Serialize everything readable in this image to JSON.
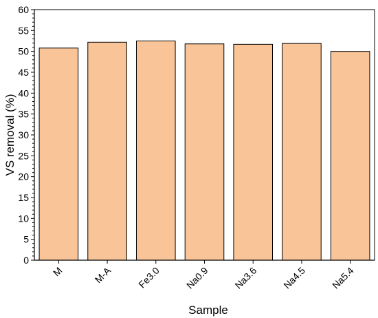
{
  "chart_data": {
    "type": "bar",
    "title": "",
    "xlabel": "Sample",
    "ylabel": "VS removal (%)",
    "categories": [
      "M",
      "M-A",
      "Fe3.0",
      "Na0.9",
      "Na3.6",
      "Na4.5",
      "Na5.4"
    ],
    "values": [
      50.8,
      52.2,
      52.5,
      51.8,
      51.7,
      51.9,
      50.0
    ],
    "ylim": [
      0,
      60
    ],
    "yticks": [
      0,
      5,
      10,
      15,
      20,
      25,
      30,
      35,
      40,
      45,
      50,
      55,
      60
    ],
    "ytick_labels": [
      "0",
      "5",
      "10",
      "15",
      "20",
      "25",
      "30",
      "35",
      "40",
      "45",
      "50",
      "55",
      "60"
    ],
    "minor_ytick_step": 1,
    "grid": false,
    "legend": "none",
    "bar_color": "#f9c498",
    "bar_edge_color": "#000000",
    "x_tick_label_rotation": -45
  }
}
